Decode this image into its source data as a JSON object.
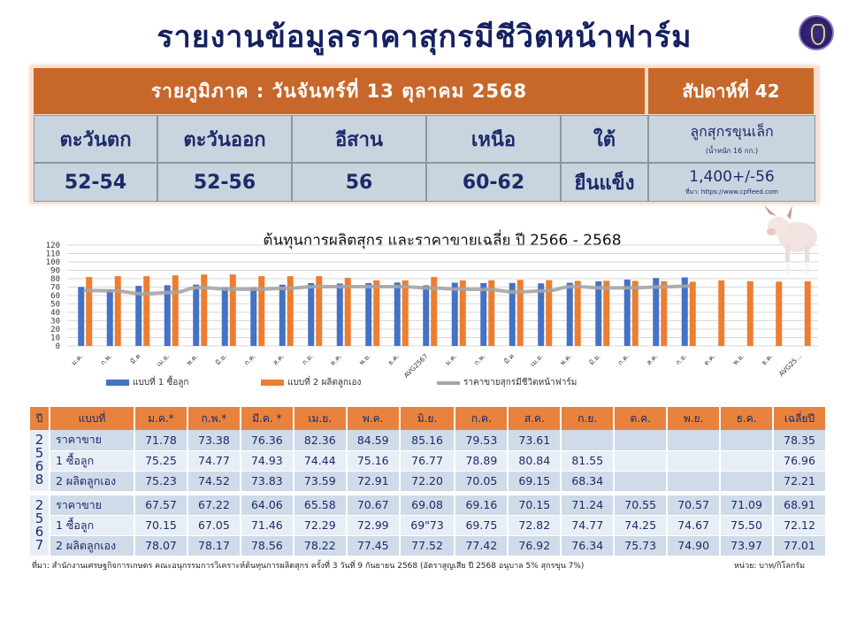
{
  "header": {
    "title": "รายงานข้อมูลราคาสุกรมีชีวิตหน้าฟาร์ม",
    "logo": "seal-logo"
  },
  "summary": {
    "heading": "รายภูมิภาค : วันจันทร์ที่ 13 ตุลาคม 2568",
    "week": "สัปดาห์ที่ 42",
    "regions": [
      {
        "name": "ตะวันตก",
        "price": "52-54"
      },
      {
        "name": "ตะวันออก",
        "price": "52-56"
      },
      {
        "name": "อีสาน",
        "price": "56"
      },
      {
        "name": "เหนือ",
        "price": "60-62"
      },
      {
        "name": "ใต้",
        "price": "ยืนแข็ง"
      }
    ],
    "piglet": {
      "label": "ลูกสุกรขุนเล็ก",
      "weight": "(น้ำหนัก 16 กก.)",
      "price": "1,400+/-56",
      "source": "ที่มา: https://www.cpffeed.com"
    }
  },
  "chart_data": {
    "type": "bar",
    "title": "ต้นทุนการผลิตสุกร และราคาขายเฉลี่ย ปี 2566 - 2568",
    "xlabel": "",
    "ylabel": "",
    "ylim": [
      0,
      120
    ],
    "yticks": [
      0,
      10,
      20,
      30,
      40,
      50,
      60,
      70,
      80,
      90,
      100,
      110,
      120
    ],
    "grid": true,
    "legend_position": "bottom",
    "categories": [
      "ม.ค.",
      "ก.พ.",
      "มี.ค",
      "เม.ย.",
      "พ.ค.",
      "มิ.ย.",
      "ก.ค.",
      "ส.ค.",
      "ก.ย.",
      "ต.ค.",
      "พ.ย.",
      "ธ.ค.",
      "AVG2567",
      "ม.ค.",
      "ก.พ.",
      "มี.ค",
      "เม.ย.",
      "พ.ค.",
      "มิ.ย.",
      "ก.ค.",
      "ส.ค.",
      "ก.ย.",
      "ต.ค.",
      "พ.ย.",
      "ธ.ค.",
      "AVG25..."
    ],
    "series": [
      {
        "name": "แบบที่ 1 ซื้อลูก",
        "color": "#4472c4",
        "kind": "bar",
        "values": [
          70.15,
          67.05,
          71.46,
          72.29,
          72.99,
          69.73,
          69.75,
          72.82,
          74.77,
          74.25,
          74.67,
          75.5,
          72.12,
          75.25,
          74.77,
          74.93,
          74.44,
          75.16,
          76.77,
          78.89,
          80.84,
          81.55,
          null,
          null,
          null,
          null
        ]
      },
      {
        "name": "แบบที่ 2 ผลิตลูกเอง",
        "color": "#ed7d31",
        "kind": "bar",
        "values": [
          82.0,
          83.0,
          83.0,
          84.0,
          85.0,
          85.0,
          83.0,
          83.0,
          83.0,
          81.0,
          78.0,
          78.0,
          82.0,
          78.07,
          78.17,
          78.56,
          78.22,
          77.45,
          77.52,
          77.42,
          76.92,
          76.34,
          78.0,
          77.0,
          76.5,
          77.0
        ]
      },
      {
        "name": "ราคาขายสุกรมีชีวิตหน้าฟาร์ม",
        "color": "#a5a5a5",
        "kind": "line",
        "values": [
          66.0,
          65.5,
          62.0,
          63.5,
          69.5,
          67.5,
          67.5,
          68.5,
          70.5,
          70.5,
          70.5,
          70.5,
          68.91,
          67.57,
          67.22,
          64.06,
          65.58,
          70.67,
          69.08,
          69.16,
          70.15,
          71.24,
          null,
          null,
          null,
          null
        ]
      }
    ],
    "display_series_hint": "Chart plots 2566 (first 12) + AVG2567 + 2567/2568 values as rendered"
  },
  "table": {
    "headers": [
      "ปี",
      "แบบที่",
      "ม.ค.*",
      "ก.พ.*",
      "มี.ค. *",
      "เม.ย.",
      "พ.ค.",
      "มิ.ย.",
      "ก.ค.",
      "ส.ค.",
      "ก.ย.",
      "ต.ค.",
      "พ.ย.",
      "ธ.ค.",
      "เฉลี่ยปี"
    ],
    "groups": [
      {
        "year": "2568",
        "rows": [
          {
            "type": "ราคาขาย",
            "values": [
              "71.78",
              "73.38",
              "76.36",
              "82.36",
              "84.59",
              "85.16",
              "79.53",
              "73.61",
              "",
              "",
              "",
              "",
              "78.35"
            ]
          },
          {
            "type": "1 ซื้อลูก",
            "values": [
              "75.25",
              "74.77",
              "74.93",
              "74.44",
              "75.16",
              "76.77",
              "78.89",
              "80.84",
              "81.55",
              "",
              "",
              "",
              "76.96"
            ]
          },
          {
            "type": "2 ผลิตลูกเอง",
            "values": [
              "75.23",
              "74.52",
              "73.83",
              "73.59",
              "72.91",
              "72.20",
              "70.05",
              "69.15",
              "68.34",
              "",
              "",
              "",
              "72.21"
            ]
          }
        ]
      },
      {
        "year": "2567",
        "rows": [
          {
            "type": "ราคาขาย",
            "values": [
              "67.57",
              "67.22",
              "64.06",
              "65.58",
              "70.67",
              "69.08",
              "69.16",
              "70.15",
              "71.24",
              "70.55",
              "70.57",
              "71.09",
              "68.91"
            ]
          },
          {
            "type": "1 ซื้อลูก",
            "values": [
              "70.15",
              "67.05",
              "71.46",
              "72.29",
              "72.99",
              "69\"73",
              "69.75",
              "72.82",
              "74.77",
              "74.25",
              "74.67",
              "75.50",
              "72.12"
            ]
          },
          {
            "type": "2 ผลิตลูกเอง",
            "values": [
              "78.07",
              "78.17",
              "78.56",
              "78.22",
              "77.45",
              "77.52",
              "77.42",
              "76.92",
              "76.34",
              "75.73",
              "74.90",
              "73.97",
              "77.01"
            ]
          }
        ]
      }
    ]
  },
  "footer": {
    "source": "ที่มา: สำนักงานเศรษฐกิจการเกษตร คณะอนุกรรมการวิเคราะห์ต้นทุนการผลิตสุกร ครั้งที่ 3 วันที่ 9 กันยายน 2568 (อัตราสูญเสีย ปี 2568 อนุบาล 5% สุกรขุน 7%)",
    "unit": "หน่วย: บาท/กิโลกรัม"
  },
  "colors": {
    "title": "#142060",
    "header_orange": "#c8672a",
    "cell_blue": "#c9d5de",
    "table_header": "#e8823c",
    "bar1": "#4472c4",
    "bar2": "#ed7d31",
    "line": "#a5a5a5"
  }
}
